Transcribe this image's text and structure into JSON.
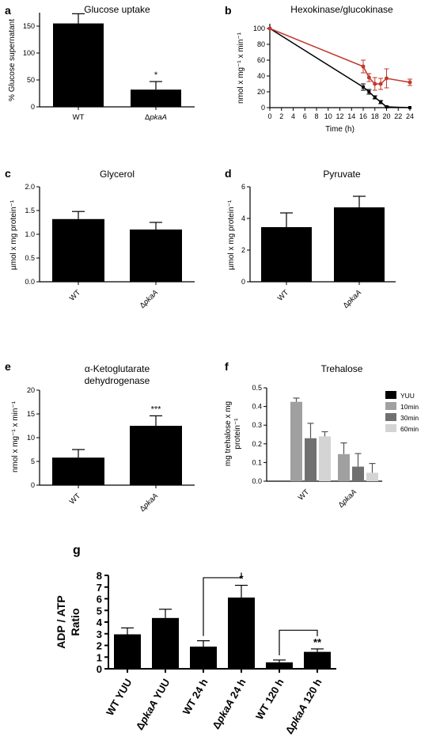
{
  "colors": {
    "bar": "#000000",
    "line_black": "#000000",
    "line_red": "#c0392b",
    "yuu": "#000000",
    "10min": "#a0a0a0",
    "30min": "#707070",
    "60min": "#d4d4d4"
  },
  "chart_data": [
    {
      "panel": "a",
      "type": "bar",
      "title": "Glucose uptake",
      "ylabel": "% Glucose supernatant",
      "categories": [
        "WT",
        "ΔpkaA"
      ],
      "values": [
        155,
        32
      ],
      "errors": [
        18,
        15
      ],
      "significance": [
        "",
        "*"
      ],
      "ylim": [
        0,
        200
      ],
      "yticks": [
        0,
        50,
        100,
        150
      ]
    },
    {
      "panel": "b",
      "type": "line",
      "title": "Hexokinase/glucokinase",
      "xlabel": "Time (h)",
      "ylabel": "nmol x mg⁻¹ x min⁻¹",
      "xlim": [
        0,
        24
      ],
      "ylim": [
        0,
        100
      ],
      "xticks": [
        0,
        2,
        4,
        6,
        8,
        10,
        12,
        14,
        16,
        18,
        20,
        22,
        24
      ],
      "yticks": [
        0,
        20,
        40,
        60,
        80,
        100
      ],
      "series": [
        {
          "color": "#000000",
          "x": [
            0,
            16,
            17,
            18,
            19,
            20,
            24
          ],
          "y": [
            100,
            26,
            20,
            13,
            7,
            1,
            0
          ],
          "err": [
            0,
            4,
            3,
            2,
            2,
            1,
            0
          ]
        },
        {
          "color": "#c0392b",
          "x": [
            0,
            16,
            17,
            18,
            19,
            20,
            24
          ],
          "y": [
            100,
            52,
            38,
            30,
            30,
            37,
            32
          ],
          "err": [
            0,
            8,
            5,
            8,
            7,
            12,
            4
          ]
        }
      ]
    },
    {
      "panel": "c",
      "type": "bar",
      "title": "Glycerol",
      "ylabel": "µmol x mg protein⁻¹",
      "categories": [
        "WT",
        "ΔpkaA"
      ],
      "values": [
        1.32,
        1.1
      ],
      "errors": [
        0.16,
        0.15
      ],
      "ylim": [
        0,
        2.0
      ],
      "yticks": [
        "0.0",
        "0.5",
        "1.0",
        "1.5",
        "2.0"
      ]
    },
    {
      "panel": "d",
      "type": "bar",
      "title": "Pyruvate",
      "ylabel": "µmol x mg protein⁻¹",
      "categories": [
        "WT",
        "ΔpkaA"
      ],
      "values": [
        3.45,
        4.7
      ],
      "errors": [
        0.9,
        0.7
      ],
      "ylim": [
        0,
        6
      ],
      "yticks": [
        0,
        2,
        4,
        6
      ]
    },
    {
      "panel": "e",
      "type": "bar",
      "title_lines": [
        "α-Ketoglutarate",
        "dehydrogenase"
      ],
      "ylabel": "nmol x mg⁻¹ x min⁻¹",
      "categories": [
        "WT",
        "ΔpkaA"
      ],
      "values": [
        5.8,
        12.5
      ],
      "errors": [
        1.7,
        2.1
      ],
      "significance": [
        "",
        "***"
      ],
      "ylim": [
        0,
        20
      ],
      "yticks": [
        0,
        5,
        10,
        15,
        20
      ]
    },
    {
      "panel": "f",
      "type": "bar",
      "title": "Trehalose",
      "ylabel_lines": [
        "mg trehalose x mg",
        "protein⁻¹"
      ],
      "categories": [
        "WT",
        "ΔpkaA"
      ],
      "legend": [
        "YUU",
        "10min",
        "30min",
        "60min"
      ],
      "legend_position": "top-right",
      "series": [
        {
          "name": "YUU",
          "values": [
            0,
            0
          ],
          "errors": [
            0,
            0
          ]
        },
        {
          "name": "10min",
          "values": [
            0.425,
            0.145
          ],
          "errors": [
            0.02,
            0.06
          ]
        },
        {
          "name": "30min",
          "values": [
            0.23,
            0.078
          ],
          "errors": [
            0.08,
            0.07
          ]
        },
        {
          "name": "60min",
          "values": [
            0.24,
            0.045
          ],
          "errors": [
            0.025,
            0.05
          ]
        }
      ],
      "ylim": [
        0,
        0.5
      ],
      "yticks": [
        "0.0",
        "0.1",
        "0.2",
        "0.3",
        "0.4",
        "0.5"
      ]
    },
    {
      "panel": "g",
      "type": "bar",
      "ylabel_lines": [
        "ADP / ATP",
        "Ratio"
      ],
      "categories": [
        "WT YUU",
        "ΔpkaA YUU",
        "WT 24 h",
        "ΔpkaA 24 h",
        "WT 120 h",
        "ΔpkaA 120 h"
      ],
      "values": [
        2.95,
        4.35,
        1.9,
        6.1,
        0.55,
        1.45
      ],
      "errors": [
        0.55,
        0.75,
        0.5,
        1.05,
        0.2,
        0.25
      ],
      "significance": [
        "",
        "",
        "",
        "*",
        "",
        "**"
      ],
      "brackets": [
        [
          2,
          3
        ],
        [
          4,
          5
        ]
      ],
      "ylim": [
        0,
        8
      ],
      "yticks": [
        0,
        1,
        2,
        3,
        4,
        5,
        6,
        7,
        8
      ]
    }
  ]
}
